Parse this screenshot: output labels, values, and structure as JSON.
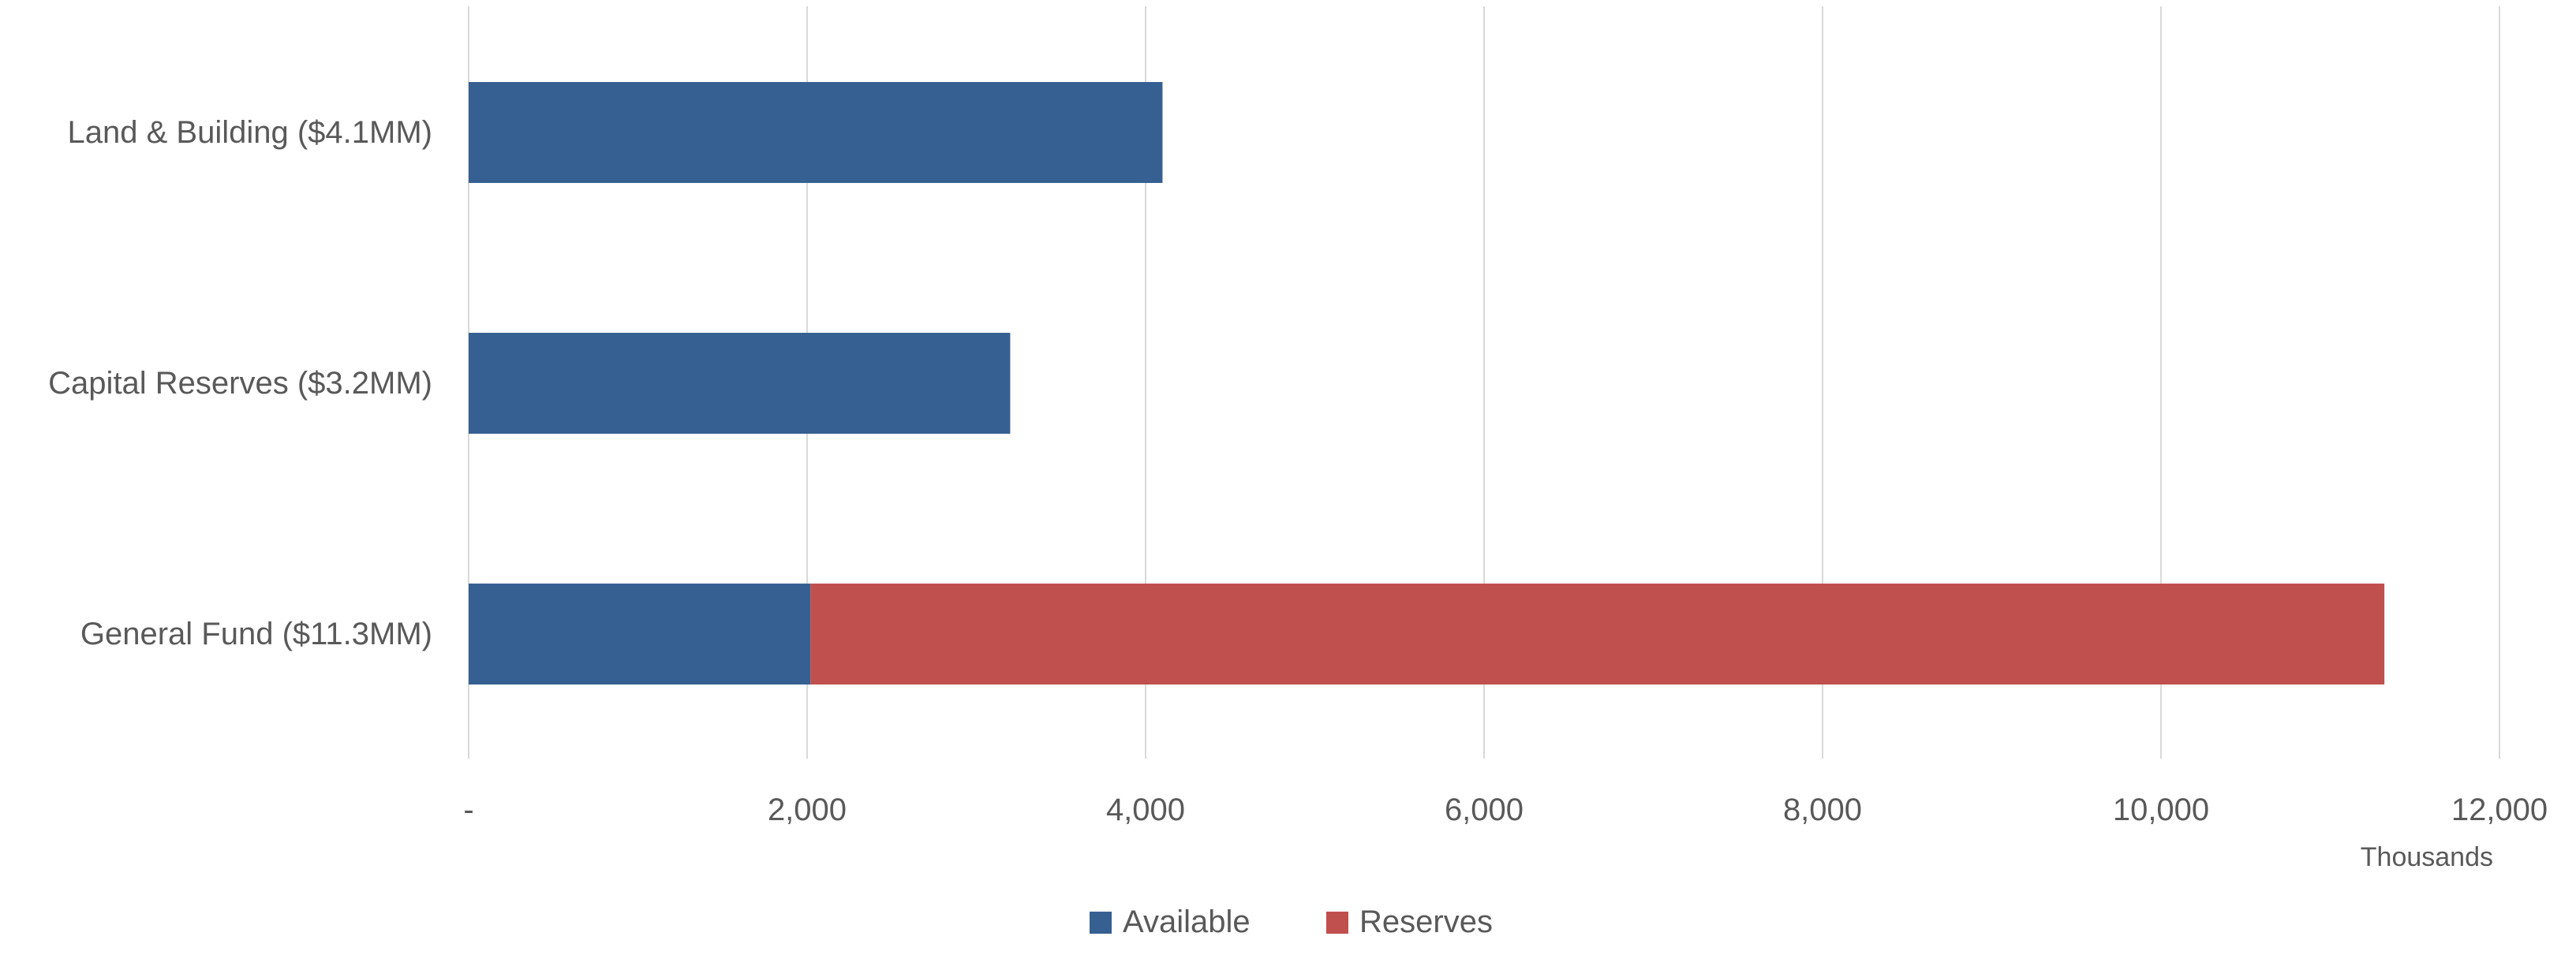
{
  "chart_data": {
    "type": "bar",
    "orientation": "horizontal",
    "stacked": true,
    "categories": [
      "Land & Building ($4.1MM)",
      "Capital Reserves ($3.2MM)",
      "General Fund ($11.3MM)"
    ],
    "series": [
      {
        "name": "Available",
        "color": "#376092",
        "values": [
          4100,
          3200,
          2020
        ]
      },
      {
        "name": "Reserves",
        "color": "#C0504D",
        "values": [
          0,
          0,
          9300
        ]
      }
    ],
    "x_ticks": [
      0,
      2000,
      4000,
      6000,
      8000,
      10000,
      12000
    ],
    "x_tick_labels": [
      "-",
      "2,000",
      "4,000",
      "6,000",
      "8,000",
      "10,000",
      "12,000"
    ],
    "xlim": [
      0,
      12000
    ],
    "units_label": "Thousands",
    "grid": true,
    "legend_position": "bottom",
    "title": "",
    "xlabel": "",
    "ylabel": ""
  }
}
